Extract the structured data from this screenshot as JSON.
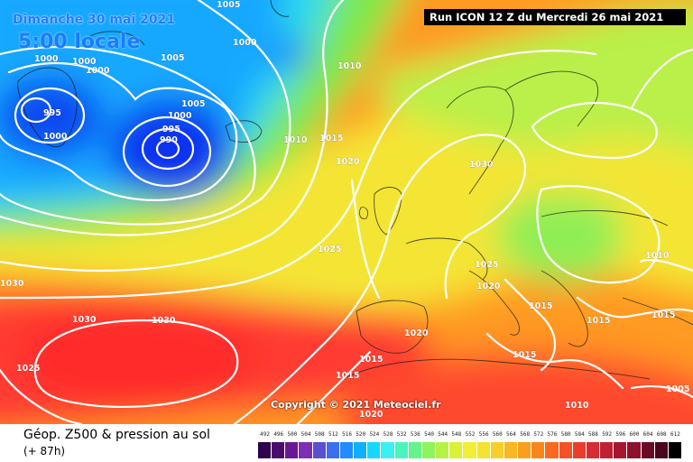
{
  "header": {
    "date": "Dimanche 30 mai 2021",
    "time": "5:00 locale",
    "run": "Run ICON 12 Z du Mercredi 26 mai 2021"
  },
  "copyright": "Copyright © 2021 Meteociel.fr",
  "footer": {
    "product": "Géop. Z500 & pression au sol",
    "lead": "(+ 87h)"
  },
  "map": {
    "isobar_labels": [
      "1005",
      "1000",
      "1000",
      "1000",
      "995",
      "1000",
      "1005",
      "1000",
      "995",
      "990",
      "1000",
      "1005",
      "1010",
      "1010",
      "1015",
      "1020",
      "1030",
      "1025",
      "1030",
      "1030",
      "1030",
      "1025",
      "1025",
      "1020",
      "1015",
      "1015",
      "1015",
      "1020",
      "1015",
      "1015",
      "1010",
      "1010",
      "1015",
      "1020"
    ],
    "colors": {
      "lows": "#0a2ef0",
      "sea_blue": "#1c78ff",
      "cyan": "#28d8ff",
      "green": "#80ef4a",
      "yellow": "#f4e534",
      "orange": "#ff9a20",
      "red": "#ff3b32"
    }
  },
  "legend": {
    "values": [
      "492",
      "496",
      "500",
      "504",
      "508",
      "512",
      "516",
      "520",
      "524",
      "528",
      "532",
      "536",
      "540",
      "544",
      "548",
      "552",
      "556",
      "560",
      "564",
      "568",
      "572",
      "576",
      "580",
      "584",
      "588",
      "592",
      "596",
      "600",
      "604",
      "608",
      "612"
    ],
    "colors": [
      "#2d004b",
      "#4c0a6e",
      "#6a1891",
      "#7c2fb2",
      "#5a4fcf",
      "#3b6ef0",
      "#1f8cff",
      "#0fb0ff",
      "#18d7ff",
      "#39f0f2",
      "#49f5bd",
      "#64f58a",
      "#8df45c",
      "#b6f244",
      "#daf13a",
      "#f2ef35",
      "#f6e231",
      "#f8cf2a",
      "#f9b722",
      "#fa9f1d",
      "#fa861b",
      "#f96a1f",
      "#f45226",
      "#eb3d2d",
      "#d72c31",
      "#c02033",
      "#a51730",
      "#8d112d",
      "#6a0b26",
      "#4a061d",
      "#000000"
    ]
  }
}
